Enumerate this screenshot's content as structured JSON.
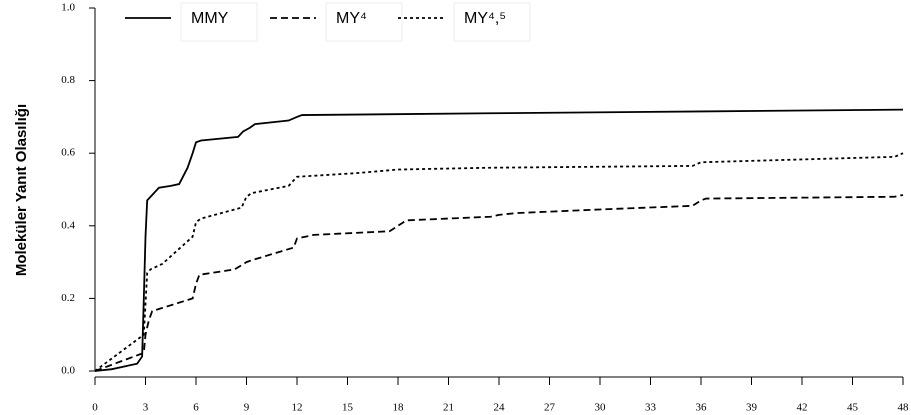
{
  "chart_data": {
    "type": "line",
    "y_label": "Moleküler Yanıt Olasılığı",
    "xlim": [
      0,
      48
    ],
    "xticks": [
      0,
      3,
      6,
      9,
      12,
      15,
      18,
      21,
      24,
      27,
      30,
      33,
      36,
      39,
      42,
      45,
      48
    ],
    "ylim": [
      0,
      1.0
    ],
    "yticks": [
      {
        "value": 0,
        "label": "0.0"
      },
      0.2,
      0.4,
      0.6,
      0.8,
      {
        "value": 1.0,
        "label": "1.0"
      }
    ],
    "grid": false,
    "legend": "top-left",
    "series": [
      {
        "name": "MMY",
        "color": "#000000",
        "line_style": "solid",
        "x": [
          0,
          1,
          1.5,
          2,
          2.5,
          2.8,
          2.9,
          3.0,
          3.1,
          3.5,
          3.8,
          4.5,
          5.0,
          5.5,
          5.8,
          6.0,
          6.3,
          8.5,
          8.8,
          9.2,
          9.5,
          11.5,
          12,
          12.3,
          23.5,
          36,
          48
        ],
        "values": [
          0,
          0.005,
          0.01,
          0.015,
          0.02,
          0.04,
          0.2,
          0.37,
          0.47,
          0.49,
          0.505,
          0.51,
          0.515,
          0.56,
          0.6,
          0.63,
          0.635,
          0.645,
          0.66,
          0.67,
          0.68,
          0.69,
          0.7,
          0.705,
          0.71,
          0.715,
          0.72
        ]
      },
      {
        "name": "MY⁴",
        "color": "#000000",
        "line_style": "dashed",
        "x": [
          0,
          2.9,
          3.0,
          3.2,
          3.4,
          5.8,
          6.0,
          6.2,
          8.3,
          9.0,
          9.3,
          11.8,
          12.0,
          13,
          17.5,
          18.0,
          18.5,
          23.5,
          24,
          25,
          30,
          35.5,
          36,
          36.3,
          47.5,
          48
        ],
        "values": [
          0,
          0.05,
          0.1,
          0.14,
          0.165,
          0.2,
          0.24,
          0.265,
          0.28,
          0.3,
          0.305,
          0.34,
          0.365,
          0.375,
          0.385,
          0.4,
          0.415,
          0.425,
          0.43,
          0.435,
          0.445,
          0.455,
          0.47,
          0.475,
          0.48,
          0.485
        ]
      },
      {
        "name": "MY⁴,⁵",
        "color": "#000000",
        "line_style": "dotted",
        "x": [
          0,
          2.9,
          3.1,
          3.3,
          4,
          5.8,
          6,
          6.3,
          8.7,
          9,
          9.3,
          11.5,
          12,
          15.5,
          18,
          23.5,
          35.5,
          36,
          47.5,
          48
        ],
        "values": [
          0,
          0.1,
          0.27,
          0.28,
          0.295,
          0.37,
          0.41,
          0.42,
          0.45,
          0.48,
          0.49,
          0.51,
          0.535,
          0.545,
          0.555,
          0.56,
          0.565,
          0.575,
          0.59,
          0.6
        ]
      }
    ]
  }
}
